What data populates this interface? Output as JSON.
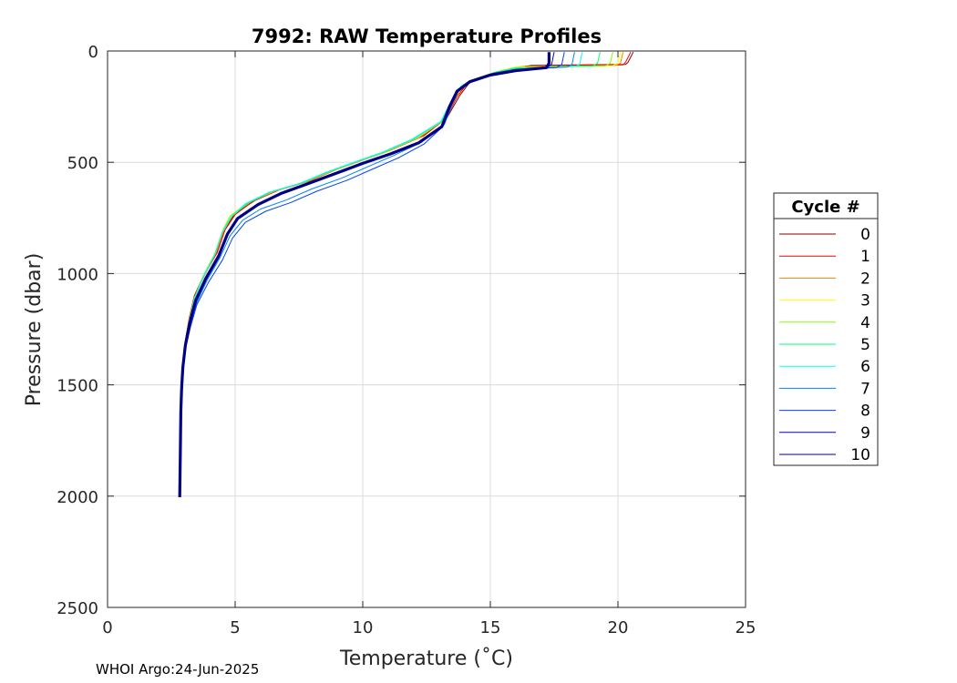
{
  "chart_data": {
    "type": "line",
    "title": "7992: RAW Temperature Profiles",
    "xlabel": "Temperature (˚C)",
    "ylabel": "Pressure (dbar)",
    "xlim": [
      0,
      25
    ],
    "ylim": [
      0,
      2500
    ],
    "y_reversed": true,
    "grid": true,
    "x_ticks": [
      "0",
      "5",
      "10",
      "15",
      "20",
      "25"
    ],
    "y_ticks": [
      "0",
      "500",
      "1000",
      "1500",
      "2000",
      "2500"
    ],
    "legend": {
      "title": "Cycle #",
      "placement": "right-outside"
    },
    "highlight_series": "10",
    "series": [
      {
        "name": "0",
        "color": "#800000",
        "points": [
          [
            20.6,
            5
          ],
          [
            20.4,
            50
          ],
          [
            20.3,
            60
          ],
          [
            16.6,
            65
          ],
          [
            15.8,
            80
          ],
          [
            14.8,
            110
          ],
          [
            14.2,
            140
          ],
          [
            13.8,
            200
          ],
          [
            13.3,
            300
          ],
          [
            12.4,
            380
          ],
          [
            11.2,
            440
          ],
          [
            10.2,
            480
          ],
          [
            9.0,
            530
          ],
          [
            8.0,
            580
          ],
          [
            6.8,
            620
          ],
          [
            5.8,
            670
          ],
          [
            5.0,
            730
          ],
          [
            4.6,
            800
          ],
          [
            4.3,
            900
          ],
          [
            3.8,
            1000
          ],
          [
            3.4,
            1100
          ],
          [
            3.2,
            1200
          ],
          [
            3.05,
            1300
          ],
          [
            2.95,
            1400
          ],
          [
            2.9,
            1500
          ],
          [
            2.87,
            1600
          ],
          [
            2.85,
            1800
          ],
          [
            2.83,
            2000
          ]
        ]
      },
      {
        "name": "1",
        "color": "#ff0000",
        "points": [
          [
            20.5,
            5
          ],
          [
            20.3,
            50
          ],
          [
            20.2,
            62
          ],
          [
            16.4,
            68
          ],
          [
            15.6,
            85
          ],
          [
            14.7,
            115
          ],
          [
            14.1,
            145
          ],
          [
            13.7,
            205
          ],
          [
            13.25,
            305
          ],
          [
            12.3,
            385
          ],
          [
            11.1,
            445
          ],
          [
            10.1,
            485
          ],
          [
            8.9,
            535
          ],
          [
            7.9,
            585
          ],
          [
            6.7,
            625
          ],
          [
            5.7,
            675
          ],
          [
            5.0,
            735
          ],
          [
            4.6,
            805
          ],
          [
            4.3,
            905
          ],
          [
            3.8,
            1005
          ],
          [
            3.4,
            1105
          ],
          [
            3.2,
            1205
          ],
          [
            3.05,
            1305
          ],
          [
            2.95,
            1405
          ],
          [
            2.9,
            1505
          ],
          [
            2.87,
            1605
          ],
          [
            2.85,
            1805
          ],
          [
            2.83,
            2000
          ]
        ]
      },
      {
        "name": "2",
        "color": "#ff8000",
        "points": [
          [
            20.2,
            5
          ],
          [
            20.1,
            55
          ],
          [
            19.9,
            65
          ],
          [
            16.2,
            70
          ],
          [
            15.4,
            90
          ],
          [
            14.6,
            118
          ],
          [
            14.0,
            150
          ],
          [
            13.65,
            210
          ],
          [
            13.2,
            310
          ],
          [
            12.2,
            390
          ],
          [
            11.0,
            450
          ],
          [
            10.0,
            490
          ],
          [
            8.8,
            540
          ],
          [
            7.8,
            588
          ],
          [
            6.6,
            628
          ],
          [
            5.6,
            678
          ],
          [
            4.9,
            738
          ],
          [
            4.55,
            808
          ],
          [
            4.25,
            908
          ],
          [
            3.8,
            1008
          ],
          [
            3.4,
            1108
          ],
          [
            3.2,
            1208
          ],
          [
            3.05,
            1308
          ],
          [
            2.95,
            1408
          ],
          [
            2.9,
            1508
          ],
          [
            2.87,
            1608
          ],
          [
            2.85,
            1808
          ],
          [
            2.83,
            2000
          ]
        ]
      },
      {
        "name": "3",
        "color": "#ffff00",
        "points": [
          [
            20.1,
            5
          ],
          [
            20.0,
            55
          ],
          [
            19.8,
            66
          ],
          [
            16.0,
            72
          ],
          [
            15.3,
            92
          ],
          [
            14.5,
            120
          ],
          [
            13.95,
            152
          ],
          [
            13.6,
            212
          ],
          [
            13.15,
            312
          ],
          [
            12.1,
            392
          ],
          [
            10.9,
            452
          ],
          [
            9.9,
            492
          ],
          [
            8.7,
            542
          ],
          [
            7.7,
            590
          ],
          [
            6.5,
            630
          ],
          [
            5.5,
            680
          ],
          [
            4.8,
            740
          ],
          [
            4.5,
            810
          ],
          [
            4.2,
            910
          ],
          [
            3.75,
            1010
          ],
          [
            3.4,
            1110
          ],
          [
            3.2,
            1210
          ],
          [
            3.05,
            1310
          ],
          [
            2.95,
            1410
          ],
          [
            2.9,
            1510
          ],
          [
            2.87,
            1610
          ],
          [
            2.85,
            1810
          ],
          [
            2.83,
            2000
          ]
        ]
      },
      {
        "name": "4",
        "color": "#80ff00",
        "points": [
          [
            19.8,
            5
          ],
          [
            19.7,
            55
          ],
          [
            19.5,
            67
          ],
          [
            16.0,
            74
          ],
          [
            15.2,
            94
          ],
          [
            14.5,
            122
          ],
          [
            13.9,
            154
          ],
          [
            13.55,
            214
          ],
          [
            13.1,
            314
          ],
          [
            12.0,
            394
          ],
          [
            10.8,
            454
          ],
          [
            9.8,
            494
          ],
          [
            8.6,
            544
          ],
          [
            7.6,
            592
          ],
          [
            6.4,
            632
          ],
          [
            5.5,
            682
          ],
          [
            4.8,
            742
          ],
          [
            4.5,
            812
          ],
          [
            4.2,
            912
          ],
          [
            3.75,
            1012
          ],
          [
            3.4,
            1112
          ],
          [
            3.2,
            1212
          ],
          [
            3.05,
            1312
          ],
          [
            2.95,
            1412
          ],
          [
            2.9,
            1512
          ],
          [
            2.87,
            1612
          ],
          [
            2.85,
            1812
          ],
          [
            2.83,
            2000
          ]
        ]
      },
      {
        "name": "5",
        "color": "#00ff80",
        "points": [
          [
            19.3,
            5
          ],
          [
            19.2,
            55
          ],
          [
            19.0,
            68
          ],
          [
            16.0,
            76
          ],
          [
            15.2,
            96
          ],
          [
            14.45,
            124
          ],
          [
            13.9,
            156
          ],
          [
            13.5,
            216
          ],
          [
            13.1,
            316
          ],
          [
            12.0,
            396
          ],
          [
            10.8,
            456
          ],
          [
            9.8,
            496
          ],
          [
            8.6,
            546
          ],
          [
            7.6,
            594
          ],
          [
            6.4,
            634
          ],
          [
            5.5,
            684
          ],
          [
            4.85,
            744
          ],
          [
            4.5,
            814
          ],
          [
            4.2,
            914
          ],
          [
            3.75,
            1014
          ],
          [
            3.4,
            1114
          ],
          [
            3.2,
            1214
          ],
          [
            3.05,
            1314
          ],
          [
            2.95,
            1414
          ],
          [
            2.9,
            1514
          ],
          [
            2.87,
            1614
          ],
          [
            2.85,
            1814
          ],
          [
            2.83,
            2000
          ]
        ]
      },
      {
        "name": "6",
        "color": "#00ffff",
        "points": [
          [
            18.6,
            5
          ],
          [
            18.5,
            60
          ],
          [
            18.3,
            70
          ],
          [
            16.0,
            80
          ],
          [
            15.2,
            98
          ],
          [
            14.4,
            126
          ],
          [
            13.85,
            158
          ],
          [
            13.5,
            218
          ],
          [
            13.05,
            318
          ],
          [
            11.9,
            398
          ],
          [
            10.7,
            458
          ],
          [
            9.7,
            498
          ],
          [
            8.5,
            548
          ],
          [
            7.5,
            596
          ],
          [
            6.3,
            636
          ],
          [
            5.4,
            686
          ],
          [
            4.85,
            746
          ],
          [
            4.5,
            816
          ],
          [
            4.2,
            916
          ],
          [
            3.75,
            1016
          ],
          [
            3.4,
            1116
          ],
          [
            3.2,
            1216
          ],
          [
            3.05,
            1316
          ],
          [
            2.95,
            1416
          ],
          [
            2.9,
            1516
          ],
          [
            2.87,
            1616
          ],
          [
            2.85,
            1816
          ],
          [
            2.83,
            2000
          ]
        ]
      },
      {
        "name": "7",
        "color": "#0080ff",
        "points": [
          [
            18.3,
            5
          ],
          [
            18.2,
            60
          ],
          [
            18.0,
            72
          ],
          [
            16.0,
            82
          ],
          [
            15.1,
            100
          ],
          [
            14.3,
            130
          ],
          [
            13.8,
            170
          ],
          [
            13.5,
            240
          ],
          [
            13.2,
            330
          ],
          [
            12.3,
            410
          ],
          [
            11.2,
            470
          ],
          [
            10.2,
            520
          ],
          [
            9.2,
            570
          ],
          [
            8.0,
            620
          ],
          [
            7.0,
            670
          ],
          [
            6.0,
            710
          ],
          [
            5.3,
            760
          ],
          [
            4.8,
            830
          ],
          [
            4.4,
            930
          ],
          [
            3.9,
            1030
          ],
          [
            3.5,
            1130
          ],
          [
            3.25,
            1230
          ],
          [
            3.05,
            1330
          ],
          [
            2.95,
            1430
          ],
          [
            2.9,
            1530
          ],
          [
            2.87,
            1630
          ],
          [
            2.85,
            1830
          ],
          [
            2.83,
            2000
          ]
        ]
      },
      {
        "name": "8",
        "color": "#0040ff",
        "points": [
          [
            17.9,
            5
          ],
          [
            17.8,
            60
          ],
          [
            17.6,
            74
          ],
          [
            16.0,
            84
          ],
          [
            15.0,
            104
          ],
          [
            14.2,
            134
          ],
          [
            13.7,
            178
          ],
          [
            13.4,
            248
          ],
          [
            13.15,
            338
          ],
          [
            12.4,
            418
          ],
          [
            11.4,
            480
          ],
          [
            10.4,
            530
          ],
          [
            9.4,
            580
          ],
          [
            8.2,
            630
          ],
          [
            7.2,
            680
          ],
          [
            6.2,
            720
          ],
          [
            5.4,
            770
          ],
          [
            4.9,
            840
          ],
          [
            4.5,
            940
          ],
          [
            3.95,
            1040
          ],
          [
            3.5,
            1140
          ],
          [
            3.25,
            1240
          ],
          [
            3.05,
            1340
          ],
          [
            2.95,
            1440
          ],
          [
            2.9,
            1540
          ],
          [
            2.87,
            1640
          ],
          [
            2.85,
            1840
          ],
          [
            2.83,
            2000
          ]
        ]
      },
      {
        "name": "9",
        "color": "#0000c0",
        "points": [
          [
            17.5,
            5
          ],
          [
            17.4,
            60
          ],
          [
            17.2,
            76
          ],
          [
            16.0,
            86
          ],
          [
            15.0,
            106
          ],
          [
            14.2,
            136
          ],
          [
            13.7,
            180
          ],
          [
            13.4,
            250
          ],
          [
            13.1,
            340
          ],
          [
            12.2,
            412
          ],
          [
            11.1,
            462
          ],
          [
            10.0,
            505
          ],
          [
            8.9,
            552
          ],
          [
            7.8,
            598
          ],
          [
            6.8,
            640
          ],
          [
            5.9,
            690
          ],
          [
            5.1,
            752
          ],
          [
            4.7,
            822
          ],
          [
            4.35,
            922
          ],
          [
            3.85,
            1022
          ],
          [
            3.45,
            1122
          ],
          [
            3.22,
            1222
          ],
          [
            3.05,
            1322
          ],
          [
            2.95,
            1422
          ],
          [
            2.9,
            1522
          ],
          [
            2.87,
            1622
          ],
          [
            2.85,
            1822
          ],
          [
            2.83,
            2000
          ]
        ]
      },
      {
        "name": "10",
        "color": "#000080",
        "points": [
          [
            17.3,
            5
          ],
          [
            17.3,
            55
          ],
          [
            17.2,
            75
          ],
          [
            16.0,
            88
          ],
          [
            15.0,
            108
          ],
          [
            14.2,
            138
          ],
          [
            13.7,
            180
          ],
          [
            13.4,
            250
          ],
          [
            13.1,
            340
          ],
          [
            12.2,
            412
          ],
          [
            11.1,
            462
          ],
          [
            10.0,
            505
          ],
          [
            8.9,
            552
          ],
          [
            7.8,
            598
          ],
          [
            6.8,
            640
          ],
          [
            5.9,
            690
          ],
          [
            5.1,
            752
          ],
          [
            4.7,
            822
          ],
          [
            4.35,
            922
          ],
          [
            3.85,
            1022
          ],
          [
            3.45,
            1122
          ],
          [
            3.22,
            1222
          ],
          [
            3.05,
            1322
          ],
          [
            2.95,
            1422
          ],
          [
            2.9,
            1522
          ],
          [
            2.87,
            1622
          ],
          [
            2.85,
            1822
          ],
          [
            2.83,
            2005
          ]
        ]
      }
    ]
  },
  "footer": {
    "text": "WHOI Argo:24-Jun-2025"
  }
}
